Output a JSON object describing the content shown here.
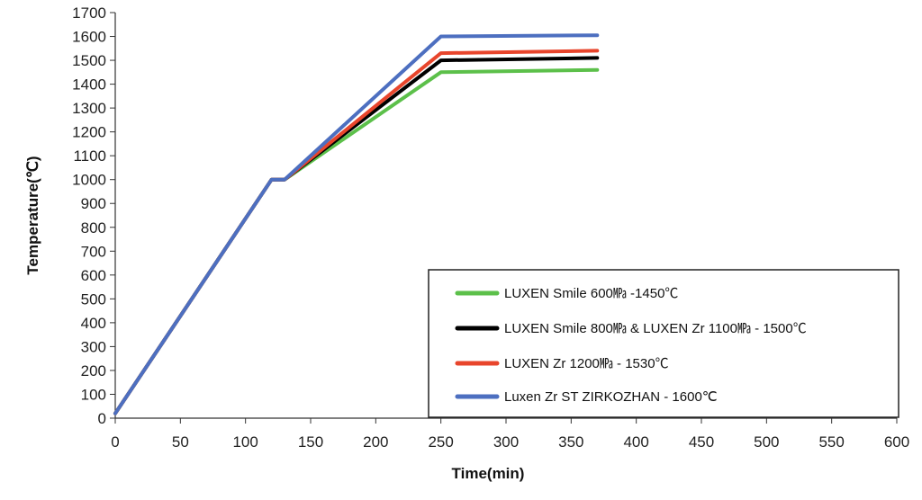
{
  "chart_data": {
    "type": "line",
    "title": "",
    "xlabel": "Time(min)",
    "ylabel": "Temperature(℃)",
    "xlim": [
      0,
      600
    ],
    "ylim": [
      0,
      1700
    ],
    "xticks": [
      0,
      50,
      100,
      150,
      200,
      250,
      300,
      350,
      400,
      450,
      500,
      550,
      600
    ],
    "yticks": [
      0,
      100,
      200,
      300,
      400,
      500,
      600,
      700,
      800,
      900,
      1000,
      1100,
      1200,
      1300,
      1400,
      1500,
      1600,
      1700
    ],
    "grid": false,
    "legend_position": "bottom-right",
    "series": [
      {
        "name": "LUXEN Smile 600㎫ -1450℃",
        "color": "#5cc04a",
        "x": [
          0,
          120,
          130,
          250,
          370
        ],
        "y": [
          20,
          1000,
          1000,
          1450,
          1460
        ]
      },
      {
        "name": "LUXEN Smile 800㎫ & LUXEN Zr 1100㎫ - 1500℃",
        "color": "#000000",
        "x": [
          0,
          120,
          130,
          250,
          370
        ],
        "y": [
          20,
          1000,
          1000,
          1500,
          1510
        ]
      },
      {
        "name": "LUXEN Zr 1200㎫ - 1530℃",
        "color": "#e8452c",
        "x": [
          0,
          120,
          130,
          250,
          370
        ],
        "y": [
          20,
          1000,
          1000,
          1530,
          1540
        ]
      },
      {
        "name": "Luxen Zr ST ZIRKOZHAN - 1600℃",
        "color": "#4d6fc0",
        "x": [
          0,
          120,
          130,
          250,
          370
        ],
        "y": [
          20,
          1000,
          1000,
          1600,
          1605
        ]
      }
    ]
  }
}
